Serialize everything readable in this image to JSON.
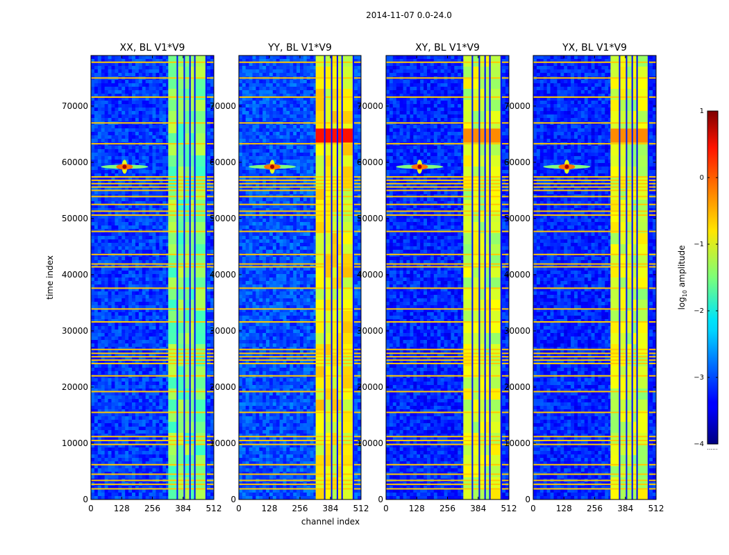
{
  "figure": {
    "suptitle": "2014-11-07 0.0-24.0",
    "xlabel": "channel index",
    "ylabel": "time index"
  },
  "chart_data": {
    "type": "heatmap",
    "title": "2014-11-07 0.0-24.0",
    "xlabel": "channel index",
    "ylabel": "time index",
    "xlim": [
      0,
      512
    ],
    "ylim": [
      0,
      79000
    ],
    "xticks": [
      0,
      128,
      256,
      384,
      512
    ],
    "yticks": [
      0,
      10000,
      20000,
      30000,
      40000,
      50000,
      60000,
      70000
    ],
    "colormap": "jet",
    "colorbar": {
      "label_prefix": "log",
      "label_sub": "10",
      "label_suffix": " amplitude",
      "range": [
        -4,
        1
      ],
      "ticks": [
        1,
        0,
        -1,
        -2,
        -3,
        -4
      ],
      "tick_labels": [
        "1",
        "0",
        "−1",
        "−2",
        "−3",
        "−4"
      ],
      "extra_text": "......"
    },
    "panels": [
      {
        "name": "xx",
        "title": "XX, BL V1*V9",
        "base_level": -3.1,
        "band_level": -1.5,
        "strong_block": null
      },
      {
        "name": "yy",
        "title": "YY, BL V1*V9",
        "base_level": -3.0,
        "band_level": -0.9,
        "strong_block": {
          "time": [
            63500,
            66000
          ],
          "level": 0.3
        }
      },
      {
        "name": "xy",
        "title": "XY, BL V1*V9",
        "base_level": -3.2,
        "band_level": -1.1,
        "strong_block": {
          "time": [
            63500,
            66000
          ],
          "level": -0.3
        }
      },
      {
        "name": "yx",
        "title": "YX, BL V1*V9",
        "base_level": -3.2,
        "band_level": -1.1,
        "strong_block": {
          "time": [
            63500,
            66000
          ],
          "level": -0.3
        }
      }
    ],
    "band_channels": [
      [
        322,
        357
      ],
      [
        361,
        386
      ],
      [
        389,
        410
      ],
      [
        414,
        430
      ],
      [
        434,
        477
      ]
    ],
    "flagged_rows_time": [
      1900,
      2700,
      3400,
      4500,
      6200,
      9800,
      10500,
      11200,
      15500,
      19200,
      22000,
      24200,
      24800,
      25400,
      26000,
      26700,
      31600,
      33900,
      37600,
      41400,
      41900,
      43600,
      47700,
      50600,
      51300,
      52500,
      53900,
      55000,
      55600,
      56200,
      56800,
      57400,
      63300,
      67000,
      71600,
      75000,
      77800
    ],
    "feature": {
      "channel": 140,
      "time": 59200,
      "level": 0.8
    }
  }
}
